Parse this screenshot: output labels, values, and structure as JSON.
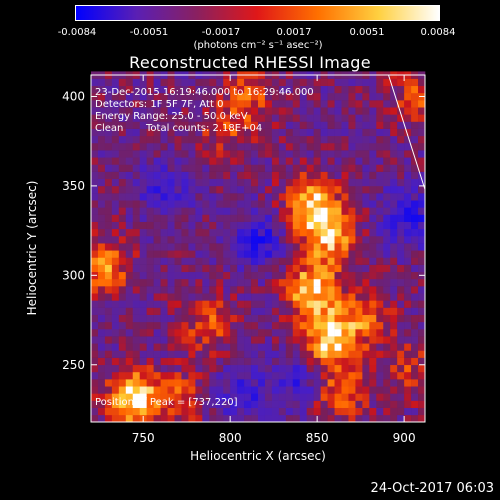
{
  "colorbar": {
    "ticks": [
      "-0.0084",
      "-0.0051",
      "-0.0017",
      "0.0017",
      "0.0051",
      "0.0084"
    ],
    "unit": "(photons cm⁻² s⁻¹ asec⁻²)",
    "colors": [
      "#0000ff",
      "#5a1fb4",
      "#8a2060",
      "#e01818",
      "#ff7000",
      "#ffd040",
      "#ffffff"
    ]
  },
  "chart_data": {
    "type": "heatmap",
    "title": "Reconstructed RHESSI Image",
    "xlabel": "Heliocentric X (arcsec)",
    "ylabel": "Heliocentric Y (arcsec)",
    "xlim": [
      720,
      912
    ],
    "ylim": [
      218,
      412
    ],
    "xticks": [
      750,
      800,
      850,
      900
    ],
    "yticks": [
      250,
      300,
      350,
      400
    ],
    "xtick_labels": [
      "750",
      "800",
      "850",
      "900"
    ],
    "ytick_labels": [
      "250",
      "300",
      "350",
      "400"
    ],
    "clim": [
      -0.0084,
      0.0084
    ],
    "blobs": [
      {
        "x": 743,
        "y": 229,
        "amp": 0.009
      },
      {
        "x": 725,
        "y": 303,
        "amp": 0.006
      },
      {
        "x": 785,
        "y": 270,
        "amp": 0.0045
      },
      {
        "x": 810,
        "y": 398,
        "amp": 0.004
      },
      {
        "x": 795,
        "y": 380,
        "amp": 0.0035
      },
      {
        "x": 845,
        "y": 338,
        "amp": 0.0075
      },
      {
        "x": 855,
        "y": 320,
        "amp": 0.007
      },
      {
        "x": 845,
        "y": 290,
        "amp": 0.008
      },
      {
        "x": 855,
        "y": 262,
        "amp": 0.0085
      },
      {
        "x": 875,
        "y": 275,
        "amp": 0.005
      },
      {
        "x": 860,
        "y": 233,
        "amp": 0.0055
      },
      {
        "x": 905,
        "y": 398,
        "amp": 0.004
      },
      {
        "x": 903,
        "y": 245,
        "amp": 0.0035
      },
      {
        "x": 770,
        "y": 230,
        "amp": 0.0035
      },
      {
        "x": 805,
        "y": 232,
        "amp": -0.004
      },
      {
        "x": 840,
        "y": 240,
        "amp": -0.004
      },
      {
        "x": 900,
        "y": 330,
        "amp": -0.005
      },
      {
        "x": 815,
        "y": 318,
        "amp": -0.0045
      },
      {
        "x": 760,
        "y": 345,
        "amp": -0.0035
      }
    ],
    "annotations": {
      "time": "23-Dec-2015 16:19:46.000 to 16:29:46.000",
      "detectors": "Detectors: 1F 5F 7F, Att 0",
      "energy": "Energy Range: 25.0 - 50.0 keV",
      "method": "Clean",
      "counts": "Total counts: 2.18E+04",
      "peak": "Position of Peak = [737,220]"
    },
    "limb_line": {
      "x": [
        891,
        912
      ],
      "y": [
        412,
        348
      ]
    }
  },
  "footer": "24-Oct-2017 06:03"
}
